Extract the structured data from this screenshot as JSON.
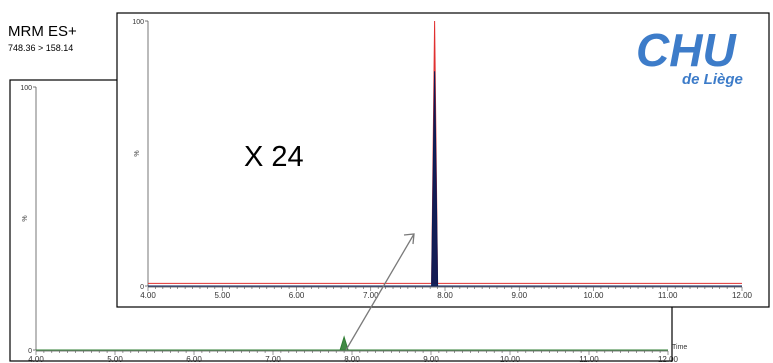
{
  "header": {
    "title": "MRM ES+",
    "transition": "748.36 > 158.14"
  },
  "annotation": {
    "multiplier": "X 24"
  },
  "logo": {
    "text": "de Liège",
    "letters": "CHU",
    "color": "#3d7cc9"
  },
  "colors": {
    "trace_overlay": "#e03030",
    "trace_dark": "#0a1a55",
    "trace_baseline": "#2e7d32",
    "arrow": "#7a7a7a"
  },
  "chart_data": [
    {
      "type": "line",
      "name": "full-scale chromatogram",
      "xlim": [
        4.0,
        12.0
      ],
      "ylim": [
        0,
        100
      ],
      "xticks": [
        "4.00",
        "5.00",
        "6.00",
        "7.00",
        "8.00",
        "9.00",
        "10.00",
        "11.00",
        "12.00"
      ],
      "yticks": [
        "0",
        "100"
      ],
      "ylabel": "%",
      "xlabel": "Time",
      "series": [
        {
          "values": [
            [
              4.0,
              0
            ],
            [
              7.85,
              0
            ],
            [
              7.9,
              5
            ],
            [
              7.95,
              0
            ],
            [
              12.0,
              0
            ]
          ]
        }
      ]
    },
    {
      "type": "line",
      "name": "zoomed chromatogram",
      "xlim": [
        4.0,
        12.0
      ],
      "ylim": [
        0,
        100
      ],
      "xticks": [
        "4.00",
        "5.00",
        "6.00",
        "7.00",
        "8.00",
        "9.00",
        "10.00",
        "11.00",
        "12.00"
      ],
      "yticks": [
        "0",
        "100"
      ],
      "ylabel": "%",
      "series": [
        {
          "values": [
            [
              4.0,
              1
            ],
            [
              7.82,
              1
            ],
            [
              7.86,
              100
            ],
            [
              7.9,
              1
            ],
            [
              12.0,
              1
            ]
          ]
        },
        {
          "values": [
            [
              4.0,
              0
            ],
            [
              7.82,
              0
            ],
            [
              7.86,
              81
            ],
            [
              7.9,
              0
            ],
            [
              12.0,
              0
            ]
          ]
        }
      ]
    }
  ]
}
